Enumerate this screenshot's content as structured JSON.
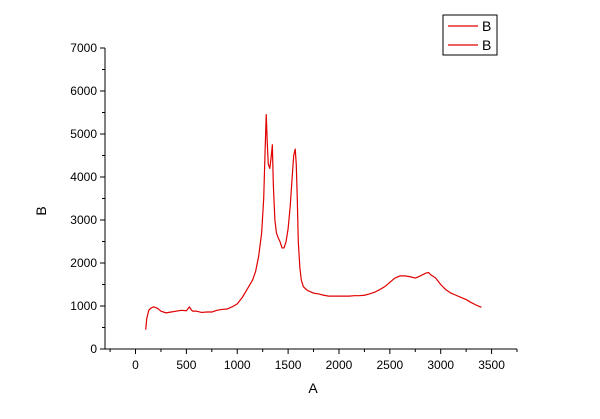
{
  "chart_data": {
    "type": "line",
    "xlabel": "A",
    "ylabel": "B",
    "xlim": [
      -300,
      3750
    ],
    "ylim": [
      0,
      7000
    ],
    "xticks": [
      0,
      500,
      1000,
      1500,
      2000,
      2500,
      3000,
      3500
    ],
    "yticks": [
      0,
      1000,
      2000,
      3000,
      4000,
      5000,
      6000,
      7000
    ],
    "grid": false,
    "legend": {
      "placement": "top-right",
      "entries": [
        "B",
        "B"
      ]
    },
    "series": [
      {
        "name": "B",
        "color": "#e00000",
        "x": [
          100,
          110,
          130,
          150,
          180,
          220,
          250,
          300,
          350,
          400,
          450,
          500,
          530,
          545,
          560,
          600,
          650,
          700,
          750,
          800,
          850,
          900,
          950,
          1000,
          1050,
          1100,
          1150,
          1180,
          1210,
          1240,
          1260,
          1275,
          1285,
          1295,
          1305,
          1320,
          1335,
          1345,
          1355,
          1370,
          1385,
          1400,
          1420,
          1440,
          1460,
          1480,
          1500,
          1520,
          1540,
          1555,
          1570,
          1580,
          1590,
          1600,
          1615,
          1630,
          1650,
          1680,
          1700,
          1750,
          1800,
          1850,
          1900,
          1950,
          2000,
          2050,
          2100,
          2150,
          2200,
          2250,
          2300,
          2350,
          2400,
          2450,
          2500,
          2550,
          2600,
          2650,
          2700,
          2750,
          2800,
          2850,
          2880,
          2900,
          2950,
          3000,
          3050,
          3100,
          3150,
          3200,
          3250,
          3300,
          3350,
          3400
        ],
        "y": [
          450,
          700,
          900,
          950,
          980,
          940,
          880,
          840,
          860,
          880,
          900,
          890,
          980,
          920,
          880,
          880,
          850,
          860,
          860,
          900,
          920,
          930,
          980,
          1050,
          1200,
          1400,
          1600,
          1800,
          2150,
          2700,
          3500,
          4700,
          5450,
          4800,
          4300,
          4200,
          4500,
          4750,
          3800,
          3000,
          2700,
          2600,
          2500,
          2350,
          2350,
          2500,
          2800,
          3300,
          4000,
          4500,
          4650,
          4300,
          3500,
          2500,
          1900,
          1600,
          1450,
          1380,
          1350,
          1300,
          1280,
          1250,
          1230,
          1230,
          1230,
          1230,
          1230,
          1240,
          1240,
          1250,
          1280,
          1320,
          1380,
          1450,
          1550,
          1650,
          1700,
          1700,
          1680,
          1650,
          1700,
          1760,
          1780,
          1730,
          1650,
          1500,
          1380,
          1300,
          1250,
          1200,
          1150,
          1080,
          1020,
          970
        ]
      }
    ]
  }
}
